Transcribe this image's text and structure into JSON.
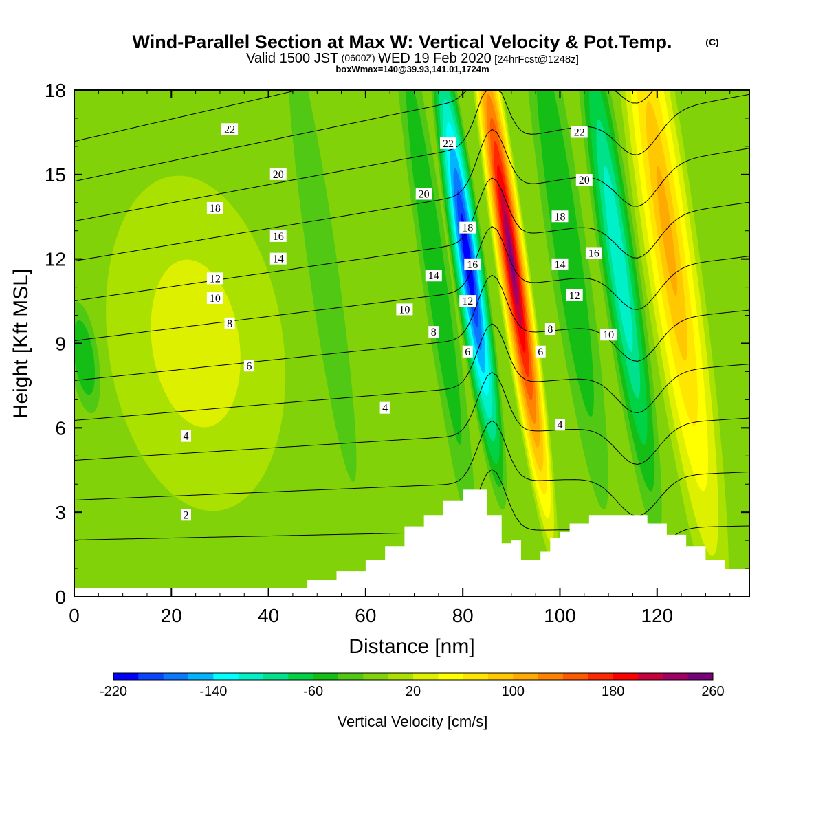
{
  "header": {
    "title": "Wind-Parallel Section at Max W: Vertical Velocity & Pot.Temp.",
    "title_mark": "(C)",
    "subtitle_pre": "Valid 1500 JST",
    "subtitle_small": "(0600Z)",
    "subtitle_mid": "WED 19 Feb 2020",
    "subtitle_bracket": "[24hrFcst@1248z]",
    "subtitle3": "boxWmax=140@39.93,141.01,1724m"
  },
  "chart_data": {
    "type": "heatmap",
    "xlabel": "Distance [nm]",
    "ylabel": "Height [Kft MSL]",
    "xlim": [
      0,
      139
    ],
    "ylim": [
      0,
      18
    ],
    "x_ticks": [
      0,
      20,
      40,
      60,
      80,
      100,
      120
    ],
    "y_ticks": [
      0,
      3,
      6,
      9,
      12,
      15,
      18
    ],
    "colorbar": {
      "label": "Vertical Velocity [cm/s]",
      "min": -220,
      "max": 260,
      "step": 20,
      "tick_labels": [
        -220,
        -140,
        -60,
        20,
        100,
        180,
        260
      ],
      "colors": [
        "#0000ff",
        "#0a46ff",
        "#0a78ff",
        "#00b4ff",
        "#00ffff",
        "#00f0c8",
        "#00e18c",
        "#00d246",
        "#14be14",
        "#50c814",
        "#82d20a",
        "#aae100",
        "#dcf000",
        "#ffff00",
        "#ffe600",
        "#ffc800",
        "#ffaa00",
        "#ff8200",
        "#ff5a00",
        "#ff2800",
        "#ff0000",
        "#c8003c",
        "#a00064",
        "#780078"
      ]
    },
    "terrain": [
      [
        0,
        0.3
      ],
      [
        6,
        0.3
      ],
      [
        12,
        0.3
      ],
      [
        18,
        0.3
      ],
      [
        24,
        0.3
      ],
      [
        30,
        0.3
      ],
      [
        36,
        0.3
      ],
      [
        42,
        0.3
      ],
      [
        48,
        0.6
      ],
      [
        54,
        0.9
      ],
      [
        60,
        1.3
      ],
      [
        64,
        1.8
      ],
      [
        68,
        2.5
      ],
      [
        72,
        2.9
      ],
      [
        76,
        3.4
      ],
      [
        80,
        3.8
      ],
      [
        82,
        3.8
      ],
      [
        85,
        2.9
      ],
      [
        88,
        1.9
      ],
      [
        90,
        2.0
      ],
      [
        92,
        1.3
      ],
      [
        96,
        1.6
      ],
      [
        98,
        2.1
      ],
      [
        100,
        2.3
      ],
      [
        102,
        2.6
      ],
      [
        106,
        2.9
      ],
      [
        110,
        2.9
      ],
      [
        114,
        2.9
      ],
      [
        118,
        2.6
      ],
      [
        122,
        2.2
      ],
      [
        126,
        1.8
      ],
      [
        130,
        1.3
      ],
      [
        134,
        1.0
      ],
      [
        139,
        0.6
      ]
    ],
    "velocity_features": [
      {
        "x": 81,
        "z": 12,
        "width": 3.5,
        "height": 9,
        "value": -220
      },
      {
        "x": 90,
        "z": 12,
        "width": 3.5,
        "height": 11,
        "value": 250
      },
      {
        "x": 112,
        "z": 12,
        "width": 4,
        "height": 10,
        "value": -120
      },
      {
        "x": 122,
        "z": 13,
        "width": 6,
        "height": 14,
        "value": 100
      },
      {
        "x": 101,
        "z": 13,
        "width": 4,
        "height": 10,
        "value": -60
      },
      {
        "x": 74,
        "z": 12,
        "width": 3,
        "height": 10,
        "value": -60
      },
      {
        "x": 51,
        "z": 12,
        "width": 3,
        "height": 8,
        "value": -40
      },
      {
        "x": 25,
        "z": 9,
        "width": 18,
        "height": 6,
        "value": 20
      },
      {
        "x": 2,
        "z": 8.5,
        "width": 3,
        "height": 2,
        "value": -60
      }
    ],
    "theta_contours": {
      "levels": [
        2,
        4,
        6,
        8,
        10,
        12,
        14,
        16,
        18,
        20,
        22
      ],
      "labels": [
        {
          "text": "22",
          "x": 32,
          "y": 16.6
        },
        {
          "text": "20",
          "x": 42,
          "y": 15.0
        },
        {
          "text": "18",
          "x": 29,
          "y": 13.8
        },
        {
          "text": "16",
          "x": 42,
          "y": 12.8
        },
        {
          "text": "14",
          "x": 42,
          "y": 12.0
        },
        {
          "text": "12",
          "x": 29,
          "y": 11.3
        },
        {
          "text": "10",
          "x": 29,
          "y": 10.6
        },
        {
          "text": "8",
          "x": 32,
          "y": 9.7
        },
        {
          "text": "6",
          "x": 36,
          "y": 8.2
        },
        {
          "text": "4",
          "x": 23,
          "y": 5.7
        },
        {
          "text": "2",
          "x": 23,
          "y": 2.9
        },
        {
          "text": "22",
          "x": 77,
          "y": 16.1
        },
        {
          "text": "20",
          "x": 72,
          "y": 14.3
        },
        {
          "text": "14",
          "x": 74,
          "y": 11.4
        },
        {
          "text": "10",
          "x": 68,
          "y": 10.2
        },
        {
          "text": "8",
          "x": 74,
          "y": 9.4
        },
        {
          "text": "4",
          "x": 64,
          "y": 6.7
        },
        {
          "text": "18",
          "x": 81,
          "y": 13.1
        },
        {
          "text": "16",
          "x": 82,
          "y": 11.8
        },
        {
          "text": "12",
          "x": 81,
          "y": 10.5
        },
        {
          "text": "6",
          "x": 81,
          "y": 8.7
        },
        {
          "text": "6",
          "x": 96,
          "y": 8.7
        },
        {
          "text": "8",
          "x": 98,
          "y": 9.5
        },
        {
          "text": "4",
          "x": 100,
          "y": 6.1
        },
        {
          "text": "22",
          "x": 104,
          "y": 16.5
        },
        {
          "text": "20",
          "x": 105,
          "y": 14.8
        },
        {
          "text": "18",
          "x": 100,
          "y": 13.5
        },
        {
          "text": "16",
          "x": 107,
          "y": 12.2
        },
        {
          "text": "14",
          "x": 100,
          "y": 11.8
        },
        {
          "text": "12",
          "x": 103,
          "y": 10.7
        },
        {
          "text": "10",
          "x": 110,
          "y": 9.3
        }
      ]
    }
  }
}
